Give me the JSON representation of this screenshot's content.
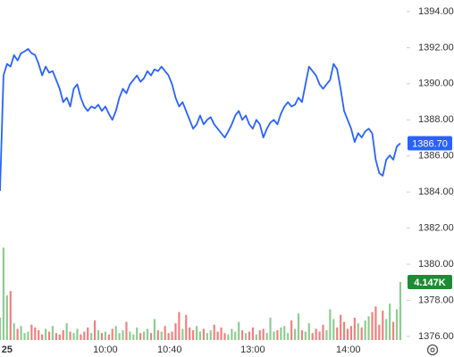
{
  "chart_data": {
    "type": "line",
    "xlim": [
      0,
      115.8
    ],
    "xticks": [
      {
        "value": 2,
        "label": "25"
      },
      {
        "value": 30,
        "label": "10:00"
      },
      {
        "value": 48.3,
        "label": "10:40"
      },
      {
        "value": 72,
        "label": "13:00"
      },
      {
        "value": 99.2,
        "label": "14:00"
      }
    ],
    "ylim": [
      1375.7,
      1394.64
    ],
    "yticks": [
      {
        "value": 1376,
        "label": "1376.00"
      },
      {
        "value": 1378,
        "label": "1378.00"
      },
      {
        "value": 1380,
        "label": "1380.00"
      },
      {
        "value": 1382,
        "label": "1382.00"
      },
      {
        "value": 1384,
        "label": "1384.00"
      },
      {
        "value": 1386,
        "label": "1386.00"
      },
      {
        "value": 1388,
        "label": "1388.00"
      },
      {
        "value": 1390,
        "label": "1390.00"
      },
      {
        "value": 1392,
        "label": "1392.00"
      },
      {
        "value": 1394,
        "label": "1394.00"
      }
    ],
    "grid": false,
    "series": [
      {
        "color": "#2962ff",
        "values": [
          1384.06,
          1390.46,
          1391.1,
          1390.95,
          1391.59,
          1391.29,
          1391.69,
          1391.79,
          1391.93,
          1391.69,
          1391.59,
          1391.1,
          1390.46,
          1390.95,
          1390.61,
          1390.7,
          1390.21,
          1389.72,
          1388.98,
          1389.23,
          1388.74,
          1389.72,
          1389.97,
          1389.23,
          1388.74,
          1388.49,
          1388.74,
          1388.64,
          1388.84,
          1388.49,
          1388.74,
          1388.34,
          1388.0,
          1388.49,
          1389.23,
          1389.72,
          1389.47,
          1389.97,
          1390.21,
          1390.46,
          1390.11,
          1390.31,
          1390.7,
          1390.46,
          1390.8,
          1390.7,
          1390.95,
          1390.7,
          1390.46,
          1389.97,
          1389.23,
          1388.74,
          1388.98,
          1388.49,
          1388.0,
          1387.51,
          1387.75,
          1388.24,
          1387.75,
          1388.0,
          1388.15,
          1387.75,
          1387.51,
          1387.26,
          1387.02,
          1387.36,
          1387.75,
          1388.24,
          1388.49,
          1388.0,
          1388.24,
          1387.75,
          1387.51,
          1388.0,
          1387.75,
          1387.02,
          1387.51,
          1387.85,
          1388.0,
          1387.75,
          1388.34,
          1388.74,
          1388.98,
          1388.74,
          1388.84,
          1389.23,
          1388.98,
          1389.97,
          1390.95,
          1390.7,
          1390.46,
          1389.97,
          1389.72,
          1389.97,
          1390.21,
          1391.1,
          1390.8,
          1389.72,
          1388.49,
          1388.0,
          1387.51,
          1386.77,
          1387.26,
          1387.02,
          1387.36,
          1387.51,
          1387.26,
          1385.79,
          1385.05,
          1384.9,
          1385.79,
          1386.03,
          1385.79,
          1386.52,
          1386.7
        ],
        "value_labels": [
          null,
          null,
          null,
          null,
          null,
          null,
          null,
          null,
          null,
          null,
          null,
          null,
          null,
          null,
          null,
          null,
          null,
          null,
          null,
          null,
          null,
          null,
          null,
          null,
          null,
          null,
          null,
          null,
          null,
          null,
          null,
          null,
          null,
          null,
          null,
          null,
          null,
          null,
          null,
          null,
          null,
          null,
          null,
          null,
          null,
          null,
          null,
          null,
          null,
          null,
          null,
          null,
          null,
          null,
          null,
          null,
          null,
          null,
          null,
          null,
          null,
          null,
          null,
          null,
          null,
          null,
          null,
          null,
          null,
          null,
          null,
          null,
          null,
          null,
          null,
          null,
          null,
          null,
          null,
          null,
          null,
          null,
          null,
          null,
          null,
          null,
          null,
          null,
          null,
          null,
          null,
          null,
          null,
          null,
          null,
          null,
          null,
          null,
          null,
          null,
          null,
          null,
          null,
          null,
          null,
          null,
          null,
          null,
          null,
          null,
          null,
          null,
          null,
          null,
          "1386.70"
        ]
      }
    ],
    "volume": {
      "up_color": "#66bb6a",
      "down_color": "#ef5350",
      "label_color": "#1e8c36",
      "vlim": [
        0,
        12.75
      ],
      "values": [
        1.6,
        6.6,
        3.2,
        3.5,
        1.2,
        0.8,
        1.0,
        0.5,
        0.6,
        1.1,
        0.9,
        0.7,
        0.4,
        0.8,
        0.6,
        1.0,
        0.5,
        0.4,
        0.7,
        1.2,
        0.6,
        0.5,
        0.8,
        0.4,
        0.6,
        0.9,
        0.5,
        1.4,
        0.7,
        0.5,
        0.6,
        0.4,
        0.8,
        1.0,
        0.5,
        0.7,
        1.3,
        0.6,
        0.4,
        0.9,
        0.5,
        0.6,
        0.8,
        0.5,
        1.5,
        0.7,
        0.6,
        1.0,
        0.5,
        0.6,
        1.2,
        2.0,
        0.8,
        1.8,
        0.9,
        0.7,
        1.0,
        0.6,
        0.8,
        0.5,
        0.7,
        1.1,
        0.6,
        0.9,
        0.5,
        0.4,
        0.8,
        0.6,
        1.3,
        0.7,
        0.5,
        0.6,
        0.9,
        0.4,
        0.7,
        0.8,
        0.5,
        1.6,
        0.6,
        0.7,
        0.9,
        1.0,
        0.5,
        1.4,
        0.8,
        1.9,
        0.7,
        0.6,
        1.2,
        0.5,
        0.8,
        0.6,
        1.1,
        0.7,
        2.2,
        1.5,
        0.9,
        1.8,
        1.3,
        0.8,
        1.0,
        1.6,
        1.2,
        0.9,
        1.4,
        1.7,
        2.0,
        2.4,
        1.1,
        2.1,
        1.5,
        2.6,
        1.3,
        2.2,
        4.147
      ],
      "value_labels": [
        null,
        null,
        null,
        null,
        null,
        null,
        null,
        null,
        null,
        null,
        null,
        null,
        null,
        null,
        null,
        null,
        null,
        null,
        null,
        null,
        null,
        null,
        null,
        null,
        null,
        null,
        null,
        null,
        null,
        null,
        null,
        null,
        null,
        null,
        null,
        null,
        null,
        null,
        null,
        null,
        null,
        null,
        null,
        null,
        null,
        null,
        null,
        null,
        null,
        null,
        null,
        null,
        null,
        null,
        null,
        null,
        null,
        null,
        null,
        null,
        null,
        null,
        null,
        null,
        null,
        null,
        null,
        null,
        null,
        null,
        null,
        null,
        null,
        null,
        null,
        null,
        null,
        null,
        null,
        null,
        null,
        null,
        null,
        null,
        null,
        null,
        null,
        null,
        null,
        null,
        null,
        null,
        null,
        null,
        null,
        null,
        null,
        null,
        null,
        null,
        null,
        null,
        null,
        null,
        null,
        null,
        null,
        null,
        null,
        null,
        null,
        null,
        null,
        null,
        "4.147K"
      ]
    }
  }
}
